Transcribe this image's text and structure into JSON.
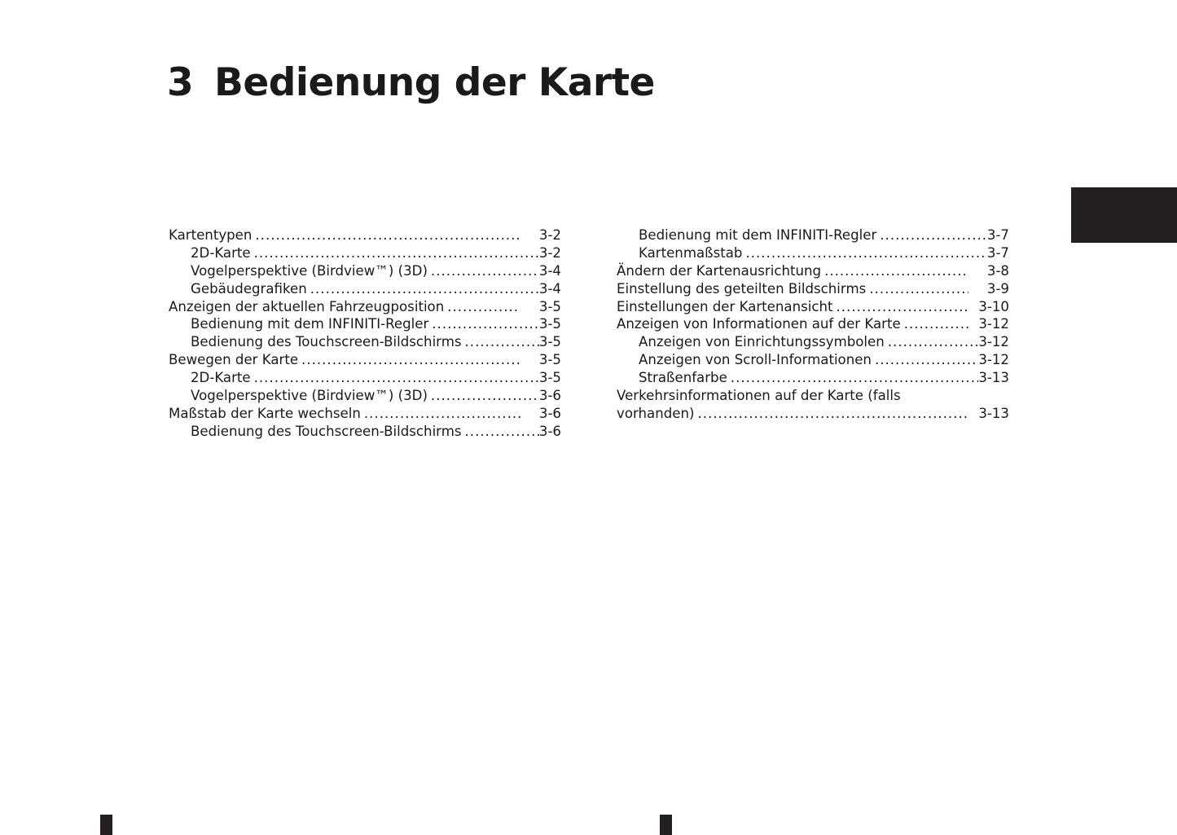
{
  "chapter": {
    "number": "3",
    "title": "Bedienung der Karte"
  },
  "toc_left": [
    {
      "label": "Kartentypen",
      "page": "3-2",
      "level": 1
    },
    {
      "label": "2D-Karte",
      "page": "3-2",
      "level": 2
    },
    {
      "label": "Vogelperspektive (Birdview™) (3D)",
      "page": "3-4",
      "level": 2
    },
    {
      "label": "Gebäudegrafiken",
      "page": "3-4",
      "level": 2
    },
    {
      "label": "Anzeigen der aktuellen Fahrzeugposition",
      "page": "3-5",
      "level": 1
    },
    {
      "label": "Bedienung mit dem INFINITI-Regler",
      "page": "3-5",
      "level": 2
    },
    {
      "label": "Bedienung des Touchscreen-Bildschirms",
      "page": "3-5",
      "level": 2
    },
    {
      "label": "Bewegen der Karte",
      "page": "3-5",
      "level": 1
    },
    {
      "label": "2D-Karte",
      "page": "3-5",
      "level": 2
    },
    {
      "label": "Vogelperspektive (Birdview™) (3D)",
      "page": "3-6",
      "level": 2
    },
    {
      "label": "Maßstab der Karte wechseln",
      "page": "3-6",
      "level": 1
    },
    {
      "label": "Bedienung des Touchscreen-Bildschirms",
      "page": "3-6",
      "level": 2
    }
  ],
  "toc_right": [
    {
      "label": "Bedienung mit dem INFINITI-Regler",
      "page": "3-7",
      "level": 2
    },
    {
      "label": "Kartenmaßstab",
      "page": "3-7",
      "level": 2
    },
    {
      "label": "Ändern der Kartenausrichtung",
      "page": "3-8",
      "level": 1
    },
    {
      "label": "Einstellung des geteilten Bildschirms",
      "page": "3-9",
      "level": 1
    },
    {
      "label": "Einstellungen der Kartenansicht",
      "page": "3-10",
      "level": 1
    },
    {
      "label": "Anzeigen von Informationen auf der Karte",
      "page": "3-12",
      "level": 1
    },
    {
      "label": "Anzeigen von Einrichtungssymbolen",
      "page": "3-12",
      "level": 2
    },
    {
      "label": "Anzeigen von Scroll-Informationen",
      "page": "3-12",
      "level": 2
    },
    {
      "label": "Straßenfarbe",
      "page": "3-13",
      "level": 2
    }
  ],
  "toc_right_wrapped": {
    "label_line1": "Verkehrsinformationen auf der Karte (falls",
    "label_line2": "vorhanden)",
    "page": "3-13"
  },
  "colors": {
    "text": "#1a1a1a",
    "tab": "#231f20"
  }
}
